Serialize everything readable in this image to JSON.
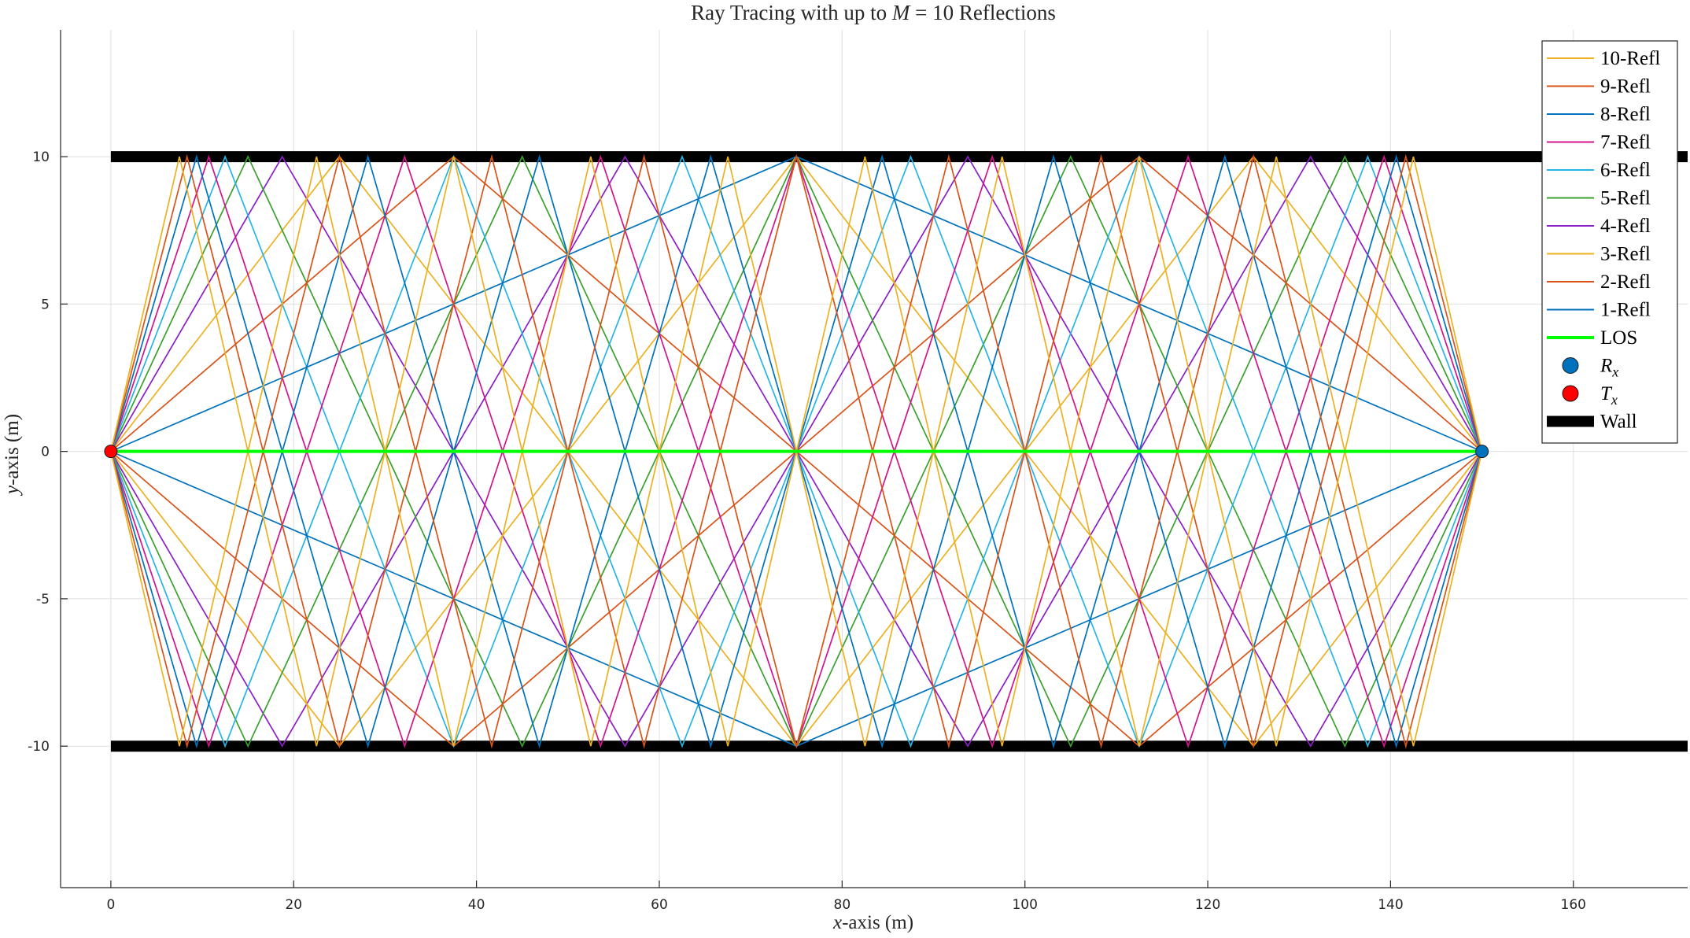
{
  "chart_data": {
    "type": "line",
    "title": "Ray Tracing with up to M = 10 Reflections",
    "title_parts": {
      "prefix": "Ray Tracing with up to ",
      "var": "M",
      "suffix": " = 10 Reflections"
    },
    "xlabel": "x-axis (m)",
    "xlabel_parts": {
      "var": "x",
      "rest": "-axis (m)"
    },
    "ylabel": "y-axis (m)",
    "ylabel_parts": {
      "var": "y",
      "rest": "-axis (m)"
    },
    "xlim": [
      -5.5,
      172.5
    ],
    "ylim": [
      -14.8,
      14.3
    ],
    "xticks": [
      0,
      20,
      40,
      60,
      80,
      100,
      120,
      140,
      160
    ],
    "yticks": [
      -10,
      -5,
      0,
      5,
      10
    ],
    "ytick_labels": [
      "-10",
      "-5",
      "0",
      "5",
      "10"
    ],
    "grid": true,
    "legend_position": "top-right",
    "transmitter": {
      "name": "Tx",
      "x": 0,
      "y": 0,
      "color": "#ff0000"
    },
    "receiver": {
      "name": "Rx",
      "x": 150,
      "y": 0,
      "color": "#0072bd"
    },
    "walls": {
      "name": "Wall",
      "y": [
        10,
        -10
      ],
      "x_start": 0,
      "x_end": 172.5,
      "color": "#000000"
    },
    "los": {
      "name": "LOS",
      "color": "#00ff00"
    },
    "max_reflections": 10,
    "series": [
      {
        "name": "10-Refl",
        "reflections": 10,
        "color": "#edb120"
      },
      {
        "name": "9-Refl",
        "reflections": 9,
        "color": "#d95319"
      },
      {
        "name": "8-Refl",
        "reflections": 8,
        "color": "#0072bd"
      },
      {
        "name": "7-Refl",
        "reflections": 7,
        "color": "#d2148c"
      },
      {
        "name": "6-Refl",
        "reflections": 6,
        "color": "#26b4e6"
      },
      {
        "name": "5-Refl",
        "reflections": 5,
        "color": "#3aa02e"
      },
      {
        "name": "4-Refl",
        "reflections": 4,
        "color": "#8c1ec8"
      },
      {
        "name": "3-Refl",
        "reflections": 3,
        "color": "#edb120"
      },
      {
        "name": "2-Refl",
        "reflections": 2,
        "color": "#d95319"
      },
      {
        "name": "1-Refl",
        "reflections": 1,
        "color": "#0072bd"
      }
    ],
    "legend": [
      {
        "name": "10-Refl",
        "kind": "line",
        "color": "#edb120"
      },
      {
        "name": "9-Refl",
        "kind": "line",
        "color": "#d95319"
      },
      {
        "name": "8-Refl",
        "kind": "line",
        "color": "#0072bd"
      },
      {
        "name": "7-Refl",
        "kind": "line",
        "color": "#d2148c"
      },
      {
        "name": "6-Refl",
        "kind": "line",
        "color": "#26b4e6"
      },
      {
        "name": "5-Refl",
        "kind": "line",
        "color": "#3aa02e"
      },
      {
        "name": "4-Refl",
        "kind": "line",
        "color": "#8c1ec8"
      },
      {
        "name": "3-Refl",
        "kind": "line",
        "color": "#edb120"
      },
      {
        "name": "2-Refl",
        "kind": "line",
        "color": "#d95319"
      },
      {
        "name": "1-Refl",
        "kind": "line",
        "color": "#0072bd"
      },
      {
        "name": "LOS",
        "kind": "line",
        "color": "#00ff00"
      },
      {
        "name": "R",
        "subscript": "x",
        "kind": "marker",
        "color": "#0072bd"
      },
      {
        "name": "T",
        "subscript": "x",
        "kind": "marker",
        "color": "#ff0000"
      },
      {
        "name": "Wall",
        "kind": "wall",
        "color": "#000000"
      }
    ]
  }
}
